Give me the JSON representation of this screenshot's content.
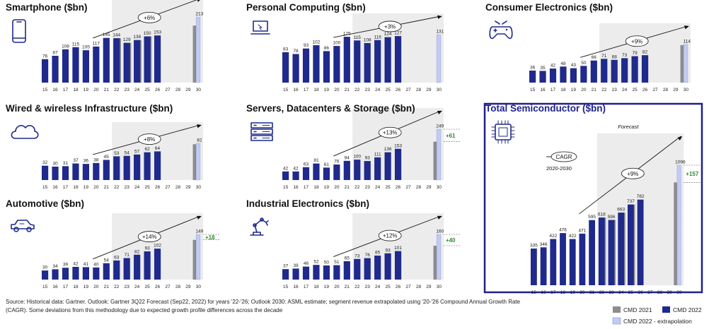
{
  "colors": {
    "cmd2021": "#8c8c8c",
    "cmd2022": "#1f2a8c",
    "extrapolation": "#c3cbf2",
    "forecast_shade": "#ececec",
    "delta_green": "#2e8b2e",
    "total_border": "#1f1f8f"
  },
  "source_text": [
    "Source: Historical data: Gartner. Outlook: Gartner 3Q22 Forecast (Sep22, 2022) for years '22-'26; Outlook 2030: ASML estimate; segment revenue extrapolated using '20-'26 Compound Annual Growth Rate",
    "(CAGR). Some deviations from this methodology due to expected growth profile differences across the decade"
  ],
  "legend": [
    "CMD 2021",
    "CMD 2022",
    "CMD 2022 - extrapolation"
  ],
  "years": [
    "15",
    "16",
    "17",
    "18",
    "19",
    "20",
    "21",
    "22",
    "23",
    "24",
    "25",
    "26",
    "27",
    "28",
    "29",
    "30"
  ],
  "chart_data": [
    {
      "type": "bar",
      "title": "Smartphone ($bn)",
      "icon": "smartphone-icon",
      "growth": "+6%",
      "categories": [
        "15",
        "16",
        "17",
        "18",
        "19",
        "20",
        "21",
        "22",
        "23",
        "24",
        "25",
        "26",
        "27",
        "28",
        "29",
        "30"
      ],
      "series": [
        {
          "name": "CMD 2021",
          "values": [
            null,
            null,
            null,
            null,
            null,
            null,
            null,
            144,
            129,
            138,
            150,
            null,
            null,
            null,
            null,
            185
          ]
        },
        {
          "name": "CMD 2022",
          "values": [
            76,
            87,
            108,
            115,
            105,
            117,
            145,
            144,
            129,
            138,
            150,
            153,
            null,
            null,
            null,
            null
          ]
        },
        {
          "name": "CMD 2022 - extrapolation",
          "values": [
            null,
            null,
            null,
            null,
            null,
            null,
            null,
            null,
            null,
            null,
            null,
            null,
            null,
            null,
            null,
            213
          ]
        }
      ],
      "labels": [
        "76",
        "87",
        "108",
        "115",
        "105",
        "117",
        "145",
        "144",
        "129",
        "138",
        "150",
        "153",
        "",
        "",
        "",
        "213"
      ],
      "delta": ""
    },
    {
      "type": "bar",
      "title": "Personal Computing ($bn)",
      "icon": "laptop-icon",
      "growth": "+3%",
      "categories": [
        "15",
        "16",
        "17",
        "18",
        "19",
        "20",
        "21",
        "22",
        "23",
        "24",
        "25",
        "26",
        "27",
        "28",
        "29",
        "30"
      ],
      "series": [
        {
          "name": "CMD 2021",
          "values": [
            null,
            null,
            null,
            null,
            null,
            null,
            null,
            null,
            null,
            null,
            null,
            null,
            null,
            null,
            null,
            null
          ]
        },
        {
          "name": "CMD 2022",
          "values": [
            83,
            78,
            93,
            102,
            86,
            100,
            125,
            115,
            108,
            116,
            124,
            127,
            null,
            null,
            null,
            null
          ]
        },
        {
          "name": "CMD 2022 - extrapolation",
          "values": [
            null,
            null,
            null,
            null,
            null,
            null,
            null,
            null,
            null,
            null,
            null,
            null,
            null,
            null,
            null,
            131
          ]
        }
      ],
      "labels": [
        "83",
        "78",
        "93",
        "102",
        "86",
        "100",
        "125",
        "115",
        "108",
        "116",
        "124",
        "127",
        "",
        "",
        "",
        "131"
      ],
      "delta": ""
    },
    {
      "type": "bar",
      "title": "Consumer Electronics ($bn)",
      "icon": "gamepad-icon",
      "growth": "+9%",
      "categories": [
        "15",
        "16",
        "17",
        "18",
        "19",
        "20",
        "21",
        "22",
        "23",
        "24",
        "25",
        "26",
        "27",
        "28",
        "29",
        "30"
      ],
      "series": [
        {
          "name": "CMD 2021",
          "values": [
            null,
            null,
            null,
            null,
            null,
            null,
            null,
            null,
            null,
            null,
            null,
            null,
            null,
            null,
            null,
            112
          ]
        },
        {
          "name": "CMD 2022",
          "values": [
            36,
            35,
            42,
            48,
            43,
            50,
            66,
            71,
            68,
            73,
            79,
            82,
            null,
            null,
            null,
            null
          ]
        },
        {
          "name": "CMD 2022 - extrapolation",
          "values": [
            null,
            null,
            null,
            null,
            null,
            null,
            null,
            null,
            null,
            null,
            null,
            null,
            null,
            null,
            null,
            114
          ]
        }
      ],
      "labels": [
        "36",
        "35",
        "42",
        "48",
        "43",
        "50",
        "66",
        "71",
        "68",
        "73",
        "79",
        "82",
        "",
        "",
        "",
        "114"
      ],
      "delta": ""
    },
    {
      "type": "bar",
      "title": "Wired & wireless Infrastructure ($bn)",
      "icon": "cloud-icon",
      "growth": "+8%",
      "categories": [
        "15",
        "16",
        "17",
        "18",
        "19",
        "20",
        "21",
        "22",
        "23",
        "24",
        "25",
        "26",
        "27",
        "28",
        "29",
        "30"
      ],
      "series": [
        {
          "name": "CMD 2021",
          "values": [
            null,
            null,
            null,
            null,
            null,
            null,
            null,
            null,
            null,
            null,
            null,
            null,
            null,
            null,
            null,
            80
          ]
        },
        {
          "name": "CMD 2022",
          "values": [
            32,
            30,
            31,
            37,
            36,
            38,
            45,
            53,
            54,
            57,
            62,
            64,
            null,
            null,
            null,
            null
          ]
        },
        {
          "name": "CMD 2022 - extrapolation",
          "values": [
            null,
            null,
            null,
            null,
            null,
            null,
            null,
            null,
            null,
            null,
            null,
            null,
            null,
            null,
            null,
            82
          ]
        }
      ],
      "labels": [
        "32",
        "30",
        "31",
        "37",
        "36",
        "38",
        "45",
        "53",
        "54",
        "57",
        "62",
        "64",
        "",
        "",
        "",
        "82"
      ],
      "delta": ""
    },
    {
      "type": "bar",
      "title": "Servers, Datacenters & Storage ($bn)",
      "icon": "server-icon",
      "growth": "+13%",
      "categories": [
        "15",
        "16",
        "17",
        "18",
        "19",
        "20",
        "21",
        "22",
        "23",
        "24",
        "25",
        "26",
        "27",
        "28",
        "29",
        "30"
      ],
      "series": [
        {
          "name": "CMD 2021",
          "values": [
            null,
            null,
            null,
            null,
            null,
            null,
            null,
            null,
            null,
            null,
            null,
            null,
            null,
            null,
            null,
            188
          ]
        },
        {
          "name": "CMD 2022",
          "values": [
            42,
            42,
            63,
            81,
            61,
            76,
            94,
            100,
            93,
            111,
            136,
            153,
            null,
            null,
            null,
            null
          ]
        },
        {
          "name": "CMD 2022 - extrapolation",
          "values": [
            null,
            null,
            null,
            null,
            null,
            null,
            null,
            null,
            null,
            null,
            null,
            null,
            null,
            null,
            null,
            249
          ]
        }
      ],
      "labels": [
        "42",
        "42",
        "63",
        "81",
        "61",
        "76",
        "94",
        "100",
        "93",
        "111",
        "136",
        "153",
        "",
        "",
        "",
        "249"
      ],
      "delta": "+61"
    },
    {
      "type": "bar",
      "title": "Total Semiconductor ($bn)",
      "icon": "chip-icon",
      "growth": "+9%",
      "forecast_label": "Forecast",
      "cagr_label": "CAGR",
      "cagr_period": "2020-2030",
      "categories": [
        "15",
        "16",
        "17",
        "18",
        "19",
        "20",
        "21",
        "22",
        "23",
        "24",
        "25",
        "26",
        "27",
        "28",
        "29",
        "30"
      ],
      "series": [
        {
          "name": "CMD 2021",
          "values": [
            null,
            null,
            null,
            null,
            null,
            null,
            null,
            618,
            596,
            663,
            737,
            null,
            null,
            null,
            null,
            939
          ]
        },
        {
          "name": "CMD 2022",
          "values": [
            335,
            346,
            422,
            476,
            422,
            471,
            595,
            618,
            596,
            663,
            737,
            782,
            null,
            null,
            null,
            null
          ]
        },
        {
          "name": "CMD 2022 - extrapolation",
          "values": [
            null,
            null,
            null,
            null,
            null,
            null,
            null,
            null,
            null,
            null,
            null,
            null,
            null,
            null,
            null,
            1096
          ]
        }
      ],
      "labels": [
        "335",
        "346",
        "422",
        "476",
        "422",
        "471",
        "595",
        "618",
        "596",
        "663",
        "737",
        "782",
        "",
        "",
        "",
        "1096"
      ],
      "delta": "+157"
    },
    {
      "type": "bar",
      "title": "Automotive ($bn)",
      "icon": "car-icon",
      "growth": "+14%",
      "categories": [
        "15",
        "16",
        "17",
        "18",
        "19",
        "20",
        "21",
        "22",
        "23",
        "24",
        "25",
        "26",
        "27",
        "28",
        "29",
        "30"
      ],
      "series": [
        {
          "name": "CMD 2021",
          "values": [
            null,
            null,
            null,
            null,
            null,
            null,
            null,
            null,
            null,
            null,
            null,
            null,
            null,
            null,
            null,
            131
          ]
        },
        {
          "name": "CMD 2022",
          "values": [
            30,
            34,
            39,
            42,
            41,
            40,
            54,
            63,
            71,
            82,
            93,
            102,
            null,
            null,
            null,
            null
          ]
        },
        {
          "name": "CMD 2022 - extrapolation",
          "values": [
            null,
            null,
            null,
            null,
            null,
            null,
            null,
            null,
            null,
            null,
            null,
            null,
            null,
            null,
            null,
            149
          ]
        }
      ],
      "labels": [
        "30",
        "34",
        "39",
        "42",
        "41",
        "40",
        "54",
        "63",
        "71",
        "82",
        "93",
        "102",
        "",
        "",
        "",
        "149"
      ],
      "delta": "+18"
    },
    {
      "type": "bar",
      "title": "Industrial Electronics ($bn)",
      "icon": "robot-arm-icon",
      "growth": "+12%",
      "categories": [
        "15",
        "16",
        "17",
        "18",
        "19",
        "20",
        "21",
        "22",
        "23",
        "24",
        "25",
        "26",
        "27",
        "28",
        "29",
        "30"
      ],
      "series": [
        {
          "name": "CMD 2021",
          "values": [
            null,
            null,
            null,
            null,
            null,
            null,
            null,
            null,
            null,
            null,
            null,
            null,
            null,
            null,
            null,
            120
          ]
        },
        {
          "name": "CMD 2022",
          "values": [
            37,
            39,
            46,
            52,
            50,
            51,
            65,
            73,
            76,
            85,
            93,
            101,
            null,
            null,
            null,
            null
          ]
        },
        {
          "name": "CMD 2022 - extrapolation",
          "values": [
            null,
            null,
            null,
            null,
            null,
            null,
            null,
            null,
            null,
            null,
            null,
            null,
            null,
            null,
            null,
            160
          ]
        }
      ],
      "labels": [
        "37",
        "39",
        "46",
        "52",
        "50",
        "51",
        "65",
        "73",
        "76",
        "85",
        "93",
        "101",
        "",
        "",
        "",
        "160"
      ],
      "delta": "+40"
    }
  ]
}
